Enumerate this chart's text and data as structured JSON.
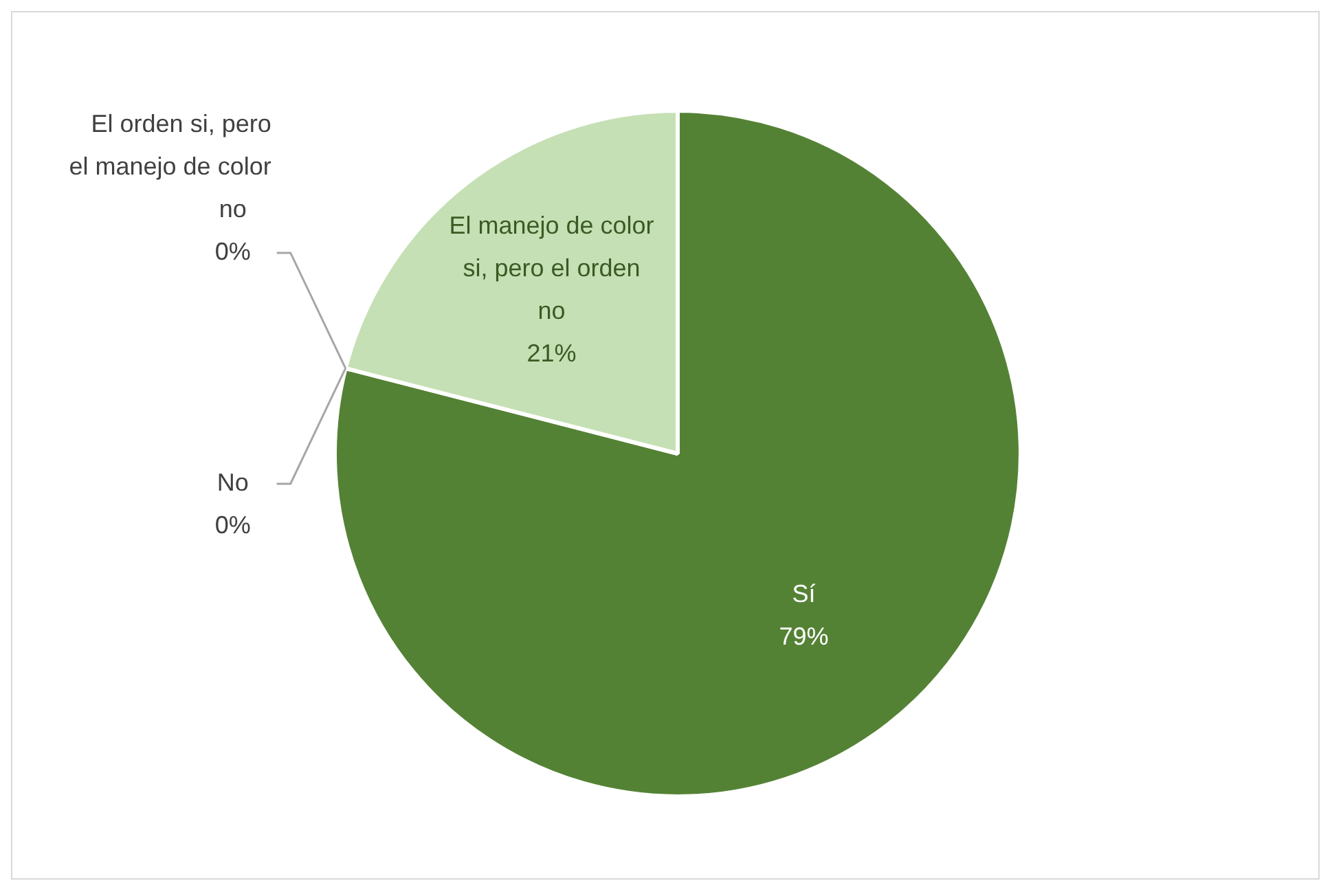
{
  "chart_data": {
    "type": "pie",
    "categories": [
      "Sí",
      "No",
      "El orden si, pero el manejo de color no",
      "El manejo de color si, pero el orden no"
    ],
    "values": [
      79,
      0,
      0,
      21
    ],
    "colors": [
      "#548235",
      "#a9d18e",
      "#70ad47",
      "#c5e0b4"
    ],
    "value_labels": [
      "79%",
      "0%",
      "0%",
      "21%"
    ],
    "legend": false
  }
}
